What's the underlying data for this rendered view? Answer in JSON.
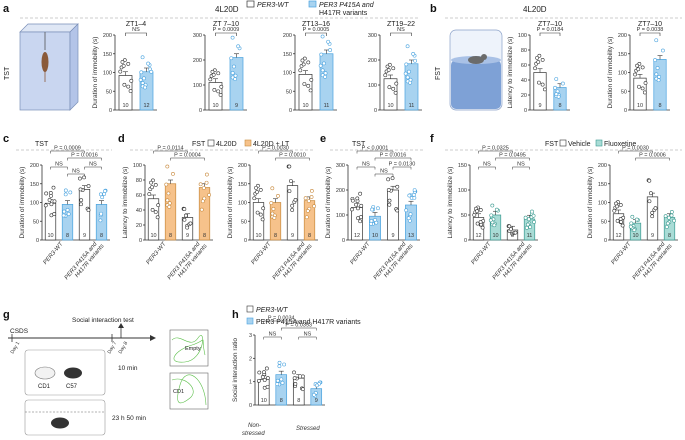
{
  "colors": {
    "wt_fill": "#ffffff",
    "var_fill": "#a8d3f0",
    "var_dot": "#4aa3df",
    "lt_fill": "#f6c28b",
    "flx_fill": "#a9dcd6",
    "wt_stroke": "#333333"
  },
  "top_legend": {
    "wt": "PER3-WT",
    "var_line1": "PER3 P415A and",
    "var_line2": "H417R variants"
  },
  "panels": {
    "a": {
      "label": "a",
      "condition": "4L20D",
      "test": "TST",
      "ylabel": "Duration of immobility (s)"
    },
    "b": {
      "label": "b",
      "condition": "4L20D",
      "test": "FST"
    },
    "c": {
      "label": "c",
      "title": "TST"
    },
    "d": {
      "label": "d",
      "legend_title": "FST",
      "leg1": "4L20D",
      "leg2": "4L20D + LT"
    },
    "e": {
      "label": "e",
      "title": "TST"
    },
    "f": {
      "label": "f",
      "legend_title": "FST",
      "leg1": "Vehicle",
      "leg2": "Fluoxetine"
    },
    "g": {
      "label": "g",
      "title": "Social interaction test",
      "csds": "CSDS",
      "day1": "Day 1",
      "day7": "Day 7",
      "day8": "Day 8",
      "cd1": "CD1",
      "c57": "C57",
      "t1": "10 min",
      "t2": "23 h 50 min",
      "empty": "Empty",
      "cd1b": "CD1"
    },
    "h": {
      "label": "h",
      "leg_wt": "PER3-WT",
      "leg_var": "PER3 P415A and H417R variants",
      "ylabel": "Social interaction ratio",
      "x1a": "Non-",
      "x1b": "stressed",
      "x2": "Stressed"
    }
  },
  "chart_data": [
    {
      "id": "a1",
      "type": "bar",
      "title": "ZT1–4",
      "ylabel": "Duration of immobility (s)",
      "ylim": [
        0,
        200
      ],
      "ticks": [
        0,
        50,
        100,
        150,
        200
      ],
      "categories": [
        "WT",
        "Variant"
      ],
      "values": [
        92,
        102
      ],
      "n": [
        "10",
        "12"
      ],
      "stats": [
        "NS"
      ]
    },
    {
      "id": "a2",
      "type": "bar",
      "title": "ZT 7–10",
      "ylim": [
        0,
        300
      ],
      "ticks": [
        0,
        100,
        200,
        300
      ],
      "categories": [
        "WT",
        "Variant"
      ],
      "values": [
        110,
        210
      ],
      "n": [
        "10",
        "9"
      ],
      "stats": [
        "P = 0.0009"
      ]
    },
    {
      "id": "a3",
      "type": "bar",
      "title": "ZT13–16",
      "ylim": [
        0,
        200
      ],
      "ticks": [
        0,
        50,
        100,
        150,
        200
      ],
      "categories": [
        "WT",
        "Variant"
      ],
      "values": [
        95,
        150
      ],
      "n": [
        "10",
        "11"
      ],
      "stats": [
        "P = 0.0005"
      ]
    },
    {
      "id": "a4",
      "type": "bar",
      "title": "ZT19–22",
      "ylim": [
        0,
        300
      ],
      "ticks": [
        0,
        100,
        200,
        300
      ],
      "categories": [
        "WT",
        "Variant"
      ],
      "values": [
        125,
        185
      ],
      "n": [
        "10",
        "11"
      ],
      "stats": [
        "NS"
      ]
    },
    {
      "id": "b1",
      "type": "bar",
      "title": "ZT7–10",
      "ylabel": "Latency to immobilize (s)",
      "ylim": [
        0,
        100
      ],
      "ticks": [
        0,
        20,
        40,
        60,
        80,
        100
      ],
      "categories": [
        "WT",
        "Variant"
      ],
      "values": [
        50,
        30
      ],
      "n": [
        "9",
        "8"
      ],
      "stats": [
        "P = 0.0184"
      ]
    },
    {
      "id": "b2",
      "type": "bar",
      "title": "ZT7–10",
      "ylabel": "Duration of immobility (s)",
      "ylim": [
        0,
        200
      ],
      "ticks": [
        0,
        50,
        100,
        150,
        200
      ],
      "categories": [
        "WT",
        "Variant"
      ],
      "values": [
        85,
        135
      ],
      "n": [
        "10",
        "8"
      ],
      "stats": [
        "P = 0.0038"
      ]
    },
    {
      "id": "c",
      "type": "bar",
      "ylabel": "Duration of immobility (s)",
      "ylim": [
        0,
        200
      ],
      "ticks": [
        0,
        50,
        100,
        150,
        200
      ],
      "groups": [
        "PER3-WT",
        "PER3 P415A and H417R variants"
      ],
      "values": [
        98,
        95,
        135,
        95
      ],
      "n": [
        "10",
        "8",
        "9",
        "8"
      ],
      "stats": [
        "P = 0.0009",
        "P = 0.0016",
        "NS",
        "NS",
        "NS"
      ]
    },
    {
      "id": "d1",
      "type": "bar",
      "ylabel": "Latency to immobilize (s)",
      "ylim": [
        0,
        100
      ],
      "ticks": [
        0,
        20,
        40,
        60,
        80,
        100
      ],
      "groups": [
        "PER3-WT",
        "PER3 P415A and H417R variants"
      ],
      "values": [
        55,
        75,
        30,
        70
      ],
      "n": [
        "10",
        "8",
        "9",
        "8"
      ],
      "stats": [
        "P = 0.0114",
        "P = 0.0004"
      ]
    },
    {
      "id": "d2",
      "type": "bar",
      "ylabel": "Duration of immobility (s)",
      "ylim": [
        0,
        200
      ],
      "ticks": [
        0,
        50,
        100,
        150,
        200
      ],
      "groups": [
        "PER3-WT",
        "PER3 P415A and H417R variants"
      ],
      "values": [
        100,
        100,
        145,
        105
      ],
      "n": [
        "10",
        "8",
        "9",
        "8"
      ],
      "stats": [
        "P = 0.0030",
        "P = 0.0010"
      ]
    },
    {
      "id": "e",
      "type": "bar",
      "ylabel": "Duration of immobility (s)",
      "ylim": [
        0,
        300
      ],
      "ticks": [
        0,
        100,
        200,
        300
      ],
      "groups": [
        "PER3-WT",
        "PER3 P415A and H417R variants"
      ],
      "values": [
        130,
        95,
        200,
        140
      ],
      "n": [
        "12",
        "10",
        "9",
        "13"
      ],
      "stats": [
        "P < 0.0001",
        "P = 0.0016",
        "NS",
        "P = 0.0130",
        "NS"
      ]
    },
    {
      "id": "f1",
      "type": "bar",
      "ylabel": "Latency to immobilize (s)",
      "ylim": [
        0,
        150
      ],
      "ticks": [
        0,
        50,
        100,
        150
      ],
      "groups": [
        "PER3-WT",
        "PER3 P415A and H417R variants"
      ],
      "values": [
        45,
        50,
        20,
        42
      ],
      "n": [
        "12",
        "10",
        "8",
        "11"
      ],
      "stats": [
        "P = 0.0325",
        "P = 0.0495",
        "NS",
        "NS"
      ]
    },
    {
      "id": "f2",
      "type": "bar",
      "ylabel": "Duration of immobility (s)",
      "ylim": [
        0,
        200
      ],
      "ticks": [
        0,
        50,
        100,
        150,
        200
      ],
      "groups": [
        "PER3-WT",
        "PER3 P415A and H417R variants"
      ],
      "values": [
        70,
        45,
        115,
        60
      ],
      "n": [
        "12",
        "10",
        "9",
        "8"
      ],
      "stats": [
        "P = 0.0030",
        "P = 0.0006"
      ]
    },
    {
      "id": "h",
      "type": "bar",
      "ylabel": "Social interaction ratio",
      "ylim": [
        0,
        3
      ],
      "ticks": [
        0,
        1,
        2,
        3
      ],
      "groups": [
        "Non-stressed",
        "Stressed"
      ],
      "values": [
        1.1,
        1.3,
        1.15,
        0.7
      ],
      "n": [
        "10",
        "8",
        "8",
        "9"
      ],
      "stats": [
        "P = 0.0034",
        "P = 0.0353",
        "NS",
        "NS"
      ]
    }
  ],
  "xlabels": {
    "wt": "PER3-WT",
    "var1": "PER3 P415A and",
    "var2": "H417R variants"
  }
}
